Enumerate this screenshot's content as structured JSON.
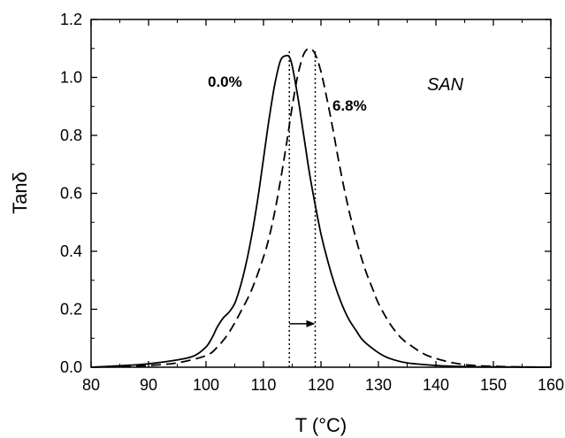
{
  "chart_data": {
    "type": "line",
    "xlabel": "T (°C)",
    "ylabel": "Tanδ",
    "xlim": [
      80,
      160
    ],
    "ylim": [
      0,
      1.2
    ],
    "x_ticks": [
      80,
      90,
      100,
      110,
      120,
      130,
      140,
      150,
      160
    ],
    "y_ticks": [
      0.0,
      0.2,
      0.4,
      0.6,
      0.8,
      1.0,
      1.2
    ],
    "x_tick_labels": [
      "80",
      "90",
      "100",
      "110",
      "120",
      "130",
      "140",
      "150",
      "160"
    ],
    "y_tick_labels": [
      "0.0",
      "0.2",
      "0.4",
      "0.6",
      "0.8",
      "1.0",
      "1.2"
    ],
    "grid": false,
    "annotations": {
      "sample": "SAN",
      "label_solid": "0.0%",
      "label_dashed": "6.8%"
    },
    "series": [
      {
        "name": "0.0%",
        "style": "solid",
        "x": [
          80,
          85,
          90,
          95,
          98,
          100,
          101,
          102,
          103,
          104,
          105,
          106,
          107,
          108,
          109,
          110,
          111,
          112,
          113,
          114,
          114.5,
          115,
          116,
          117,
          118,
          119,
          120,
          121,
          122,
          123,
          124,
          125,
          126,
          127,
          128,
          130,
          132,
          135,
          140,
          145,
          150,
          160
        ],
        "y": [
          0.0,
          0.005,
          0.012,
          0.025,
          0.04,
          0.07,
          0.1,
          0.14,
          0.17,
          0.19,
          0.22,
          0.28,
          0.36,
          0.46,
          0.58,
          0.72,
          0.86,
          0.98,
          1.06,
          1.075,
          1.07,
          1.04,
          0.93,
          0.8,
          0.67,
          0.56,
          0.46,
          0.38,
          0.31,
          0.25,
          0.2,
          0.16,
          0.13,
          0.1,
          0.08,
          0.05,
          0.03,
          0.015,
          0.006,
          0.002,
          0.001,
          0.0
        ]
      },
      {
        "name": "6.8%",
        "style": "dashed",
        "x": [
          80,
          85,
          90,
          95,
          100,
          102,
          104,
          106,
          108,
          110,
          111,
          112,
          113,
          114,
          115,
          116,
          117,
          118,
          119,
          120,
          121,
          122,
          123,
          124,
          125,
          126,
          127,
          128,
          129,
          130,
          132,
          134,
          136,
          138,
          140,
          143,
          146,
          150,
          155,
          160
        ],
        "y": [
          0.0,
          0.002,
          0.006,
          0.015,
          0.04,
          0.07,
          0.12,
          0.19,
          0.27,
          0.38,
          0.45,
          0.54,
          0.65,
          0.77,
          0.9,
          1.01,
          1.08,
          1.1,
          1.08,
          1.02,
          0.93,
          0.83,
          0.72,
          0.62,
          0.53,
          0.45,
          0.38,
          0.32,
          0.27,
          0.22,
          0.15,
          0.1,
          0.07,
          0.045,
          0.03,
          0.015,
          0.007,
          0.003,
          0.001,
          0.0
        ]
      }
    ],
    "reference_lines": [
      {
        "x": 114.5,
        "style": "dotted"
      },
      {
        "x": 119,
        "style": "dotted"
      }
    ],
    "arrow": {
      "from_x": 114.5,
      "to_x": 119,
      "y": 0.15
    }
  }
}
